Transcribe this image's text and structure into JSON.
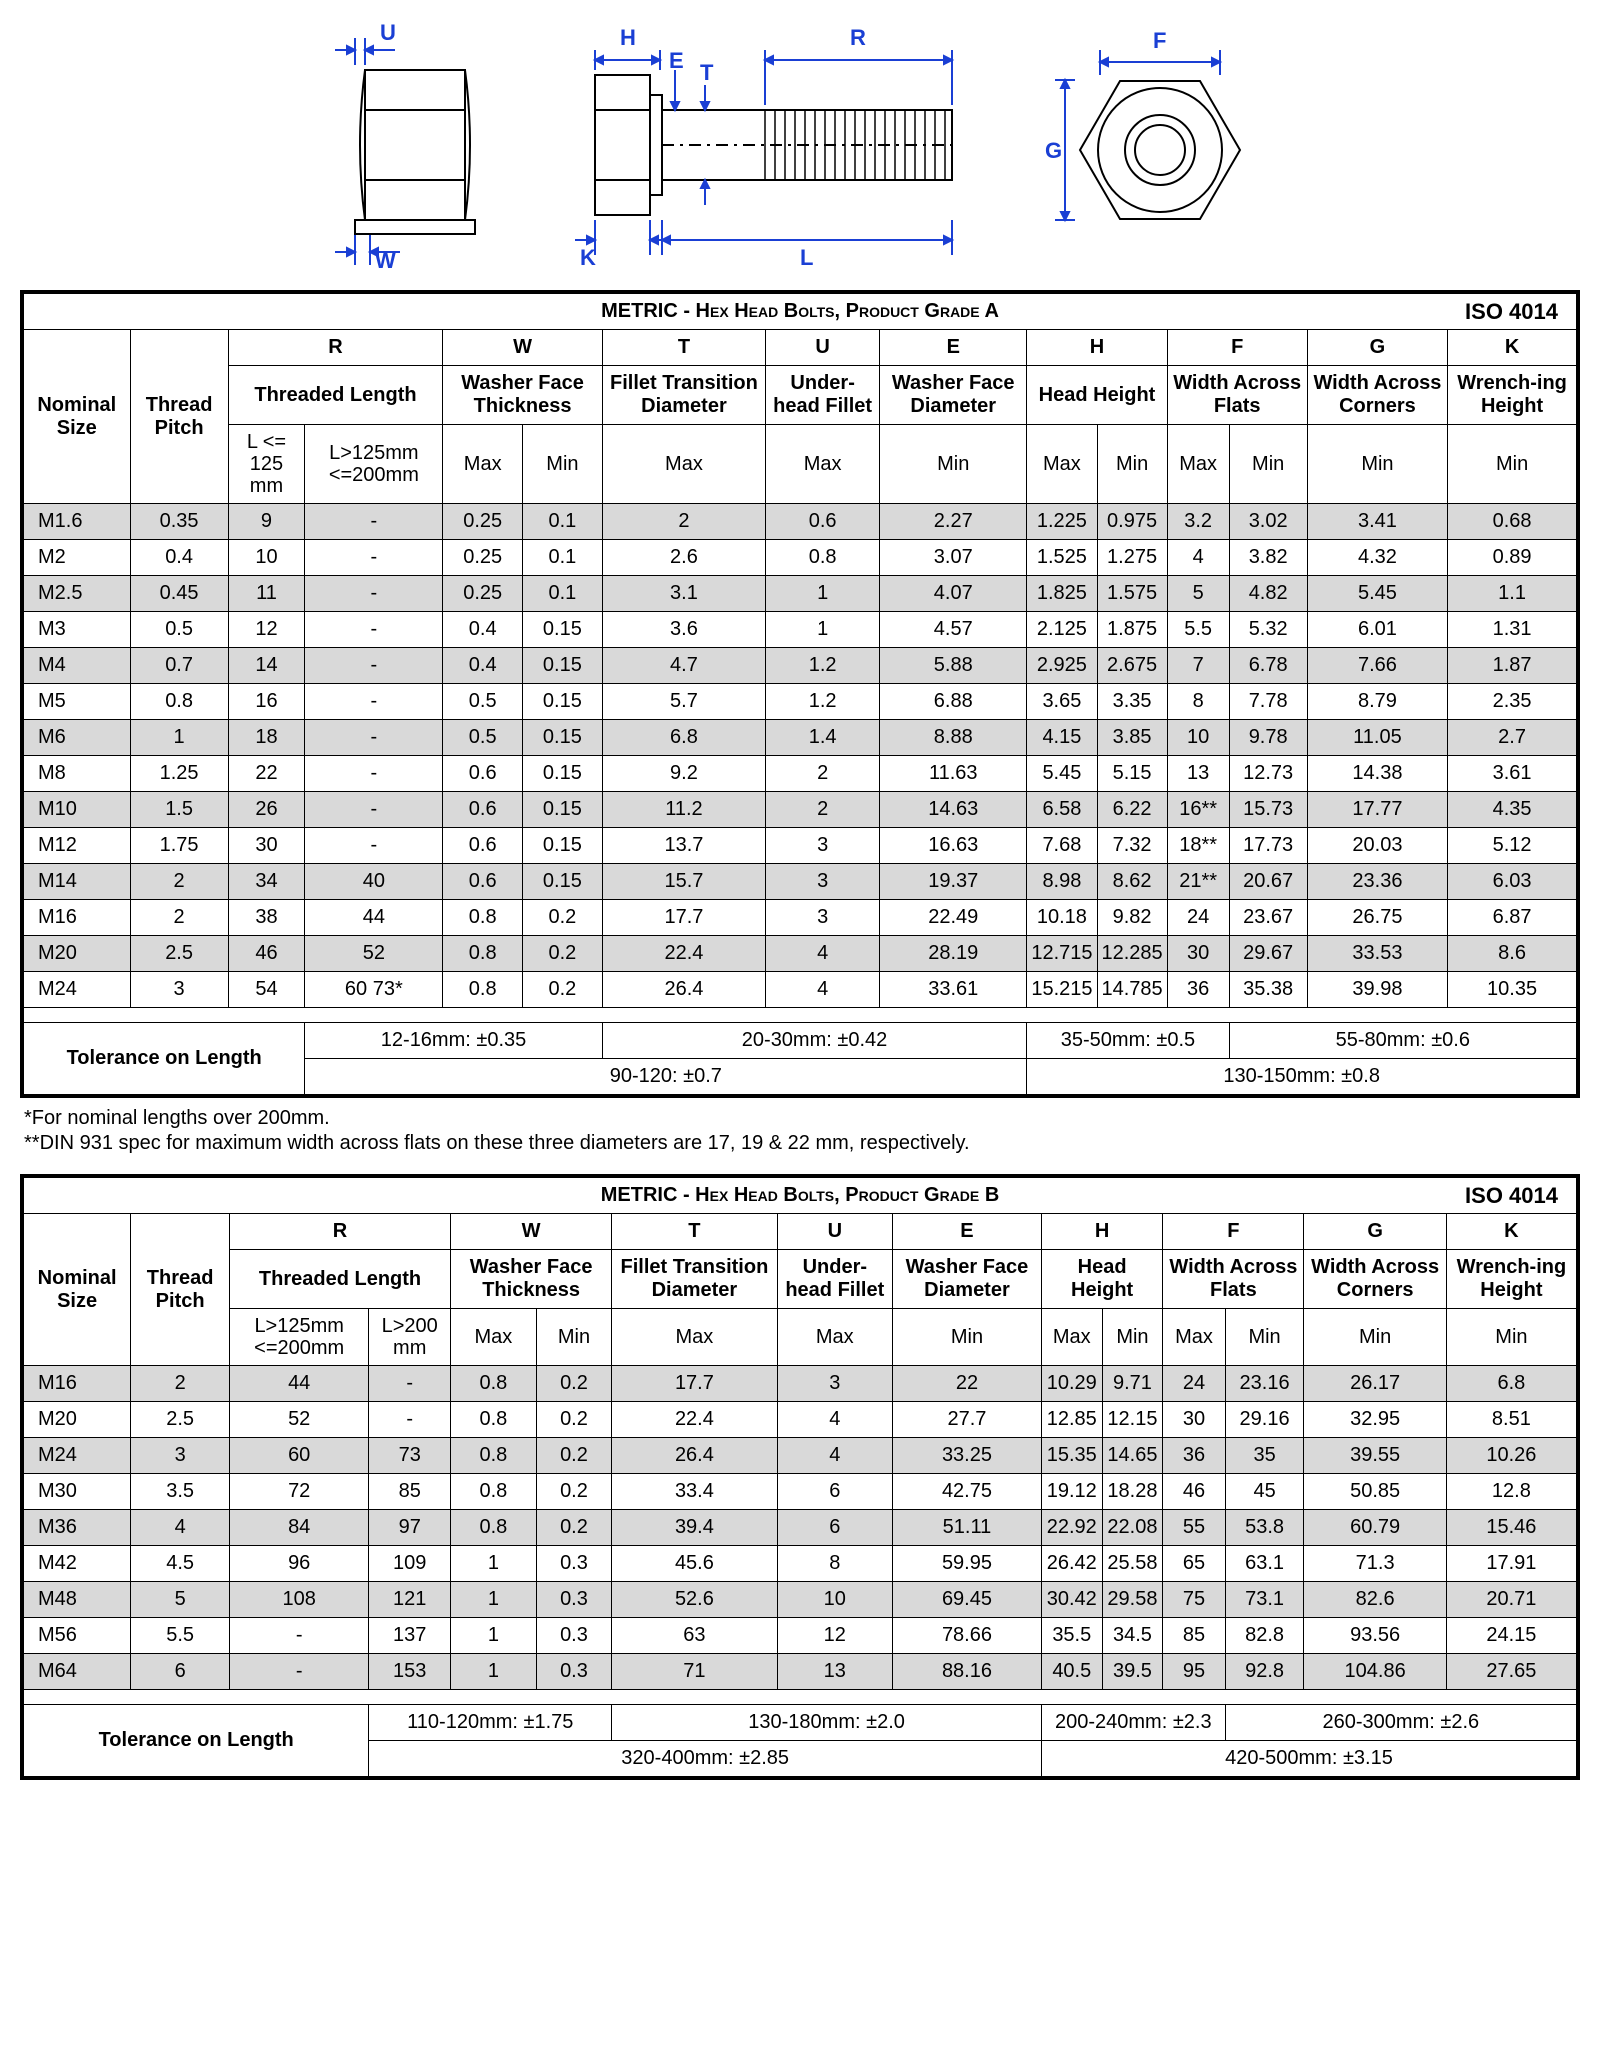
{
  "diagram_labels": {
    "U": "U",
    "W": "W",
    "H": "H",
    "E": "E",
    "T": "T",
    "R": "R",
    "K": "K",
    "L": "L",
    "F": "F",
    "G": "G"
  },
  "tableA": {
    "title": "METRIC - Hex Head Bolts, Product Grade A",
    "iso": "ISO 4014",
    "col_nominal": "Nominal Size",
    "col_pitch": "Thread Pitch",
    "letters": {
      "R": "R",
      "W": "W",
      "T": "T",
      "U": "U",
      "E": "E",
      "H": "H",
      "F": "F",
      "G": "G",
      "K": "K"
    },
    "names": {
      "R": "Threaded Length",
      "W": "Washer Face Thickness",
      "T": "Fillet Transition Diameter",
      "U": "Under-head Fillet",
      "E": "Washer Face Diameter",
      "H": "Head Height",
      "F": "Width Across Flats",
      "G": "Width Across Corners",
      "K": "Wrench-ing Height"
    },
    "sub": {
      "R1": "L <= 125 mm",
      "R2": "L>125mm <=200mm",
      "Wmax": "Max",
      "Wmin": "Min",
      "Tmax": "Max",
      "Umax": "Max",
      "Emin": "Min",
      "Hmax": "Max",
      "Hmin": "Min",
      "Fmax": "Max",
      "Fmin": "Min",
      "Gmin": "Min",
      "Kmin": "Min"
    },
    "rows": [
      [
        "M1.6",
        "0.35",
        "9",
        "-",
        "0.25",
        "0.1",
        "2",
        "0.6",
        "2.27",
        "1.225",
        "0.975",
        "3.2",
        "3.02",
        "3.41",
        "0.68"
      ],
      [
        "M2",
        "0.4",
        "10",
        "-",
        "0.25",
        "0.1",
        "2.6",
        "0.8",
        "3.07",
        "1.525",
        "1.275",
        "4",
        "3.82",
        "4.32",
        "0.89"
      ],
      [
        "M2.5",
        "0.45",
        "11",
        "-",
        "0.25",
        "0.1",
        "3.1",
        "1",
        "4.07",
        "1.825",
        "1.575",
        "5",
        "4.82",
        "5.45",
        "1.1"
      ],
      [
        "M3",
        "0.5",
        "12",
        "-",
        "0.4",
        "0.15",
        "3.6",
        "1",
        "4.57",
        "2.125",
        "1.875",
        "5.5",
        "5.32",
        "6.01",
        "1.31"
      ],
      [
        "M4",
        "0.7",
        "14",
        "-",
        "0.4",
        "0.15",
        "4.7",
        "1.2",
        "5.88",
        "2.925",
        "2.675",
        "7",
        "6.78",
        "7.66",
        "1.87"
      ],
      [
        "M5",
        "0.8",
        "16",
        "-",
        "0.5",
        "0.15",
        "5.7",
        "1.2",
        "6.88",
        "3.65",
        "3.35",
        "8",
        "7.78",
        "8.79",
        "2.35"
      ],
      [
        "M6",
        "1",
        "18",
        "-",
        "0.5",
        "0.15",
        "6.8",
        "1.4",
        "8.88",
        "4.15",
        "3.85",
        "10",
        "9.78",
        "11.05",
        "2.7"
      ],
      [
        "M8",
        "1.25",
        "22",
        "-",
        "0.6",
        "0.15",
        "9.2",
        "2",
        "11.63",
        "5.45",
        "5.15",
        "13",
        "12.73",
        "14.38",
        "3.61"
      ],
      [
        "M10",
        "1.5",
        "26",
        "-",
        "0.6",
        "0.15",
        "11.2",
        "2",
        "14.63",
        "6.58",
        "6.22",
        "16**",
        "15.73",
        "17.77",
        "4.35"
      ],
      [
        "M12",
        "1.75",
        "30",
        "-",
        "0.6",
        "0.15",
        "13.7",
        "3",
        "16.63",
        "7.68",
        "7.32",
        "18**",
        "17.73",
        "20.03",
        "5.12"
      ],
      [
        "M14",
        "2",
        "34",
        "40",
        "0.6",
        "0.15",
        "15.7",
        "3",
        "19.37",
        "8.98",
        "8.62",
        "21**",
        "20.67",
        "23.36",
        "6.03"
      ],
      [
        "M16",
        "2",
        "38",
        "44",
        "0.8",
        "0.2",
        "17.7",
        "3",
        "22.49",
        "10.18",
        "9.82",
        "24",
        "23.67",
        "26.75",
        "6.87"
      ],
      [
        "M20",
        "2.5",
        "46",
        "52",
        "0.8",
        "0.2",
        "22.4",
        "4",
        "28.19",
        "12.715",
        "12.285",
        "30",
        "29.67",
        "33.53",
        "8.6"
      ],
      [
        "M24",
        "3",
        "54",
        "60   73*",
        "0.8",
        "0.2",
        "26.4",
        "4",
        "33.61",
        "15.215",
        "14.785",
        "36",
        "35.38",
        "39.98",
        "10.35"
      ]
    ],
    "tol_label": "Tolerance on Length",
    "tol_row1": [
      "12-16mm: ±0.35",
      "20-30mm: ±0.42",
      "35-50mm: ±0.5",
      "55-80mm: ±0.6"
    ],
    "tol_row2": [
      "90-120: ±0.7",
      "130-150mm: ±0.8"
    ]
  },
  "notesA": "*For nominal lengths over 200mm.\n**DIN 931 spec for maximum width across flats on these three diameters are 17, 19 & 22 mm, respectively.",
  "tableB": {
    "title": "METRIC - Hex Head Bolts, Product Grade B",
    "iso": "ISO 4014",
    "sub": {
      "R1": "L>125mm <=200mm",
      "R2": "L>200 mm"
    },
    "rows": [
      [
        "M16",
        "2",
        "44",
        "-",
        "0.8",
        "0.2",
        "17.7",
        "3",
        "22",
        "10.29",
        "9.71",
        "24",
        "23.16",
        "26.17",
        "6.8"
      ],
      [
        "M20",
        "2.5",
        "52",
        "-",
        "0.8",
        "0.2",
        "22.4",
        "4",
        "27.7",
        "12.85",
        "12.15",
        "30",
        "29.16",
        "32.95",
        "8.51"
      ],
      [
        "M24",
        "3",
        "60",
        "73",
        "0.8",
        "0.2",
        "26.4",
        "4",
        "33.25",
        "15.35",
        "14.65",
        "36",
        "35",
        "39.55",
        "10.26"
      ],
      [
        "M30",
        "3.5",
        "72",
        "85",
        "0.8",
        "0.2",
        "33.4",
        "6",
        "42.75",
        "19.12",
        "18.28",
        "46",
        "45",
        "50.85",
        "12.8"
      ],
      [
        "M36",
        "4",
        "84",
        "97",
        "0.8",
        "0.2",
        "39.4",
        "6",
        "51.11",
        "22.92",
        "22.08",
        "55",
        "53.8",
        "60.79",
        "15.46"
      ],
      [
        "M42",
        "4.5",
        "96",
        "109",
        "1",
        "0.3",
        "45.6",
        "8",
        "59.95",
        "26.42",
        "25.58",
        "65",
        "63.1",
        "71.3",
        "17.91"
      ],
      [
        "M48",
        "5",
        "108",
        "121",
        "1",
        "0.3",
        "52.6",
        "10",
        "69.45",
        "30.42",
        "29.58",
        "75",
        "73.1",
        "82.6",
        "20.71"
      ],
      [
        "M56",
        "5.5",
        "-",
        "137",
        "1",
        "0.3",
        "63",
        "12",
        "78.66",
        "35.5",
        "34.5",
        "85",
        "82.8",
        "93.56",
        "24.15"
      ],
      [
        "M64",
        "6",
        "-",
        "153",
        "1",
        "0.3",
        "71",
        "13",
        "88.16",
        "40.5",
        "39.5",
        "95",
        "92.8",
        "104.86",
        "27.65"
      ]
    ],
    "tol_label": "Tolerance on Length",
    "tol_row1": [
      "110-120mm: ±1.75",
      "130-180mm: ±2.0",
      "200-240mm: ±2.3",
      "260-300mm: ±2.6"
    ],
    "tol_row2": [
      "320-400mm: ±2.85",
      "420-500mm: ±3.15"
    ]
  }
}
